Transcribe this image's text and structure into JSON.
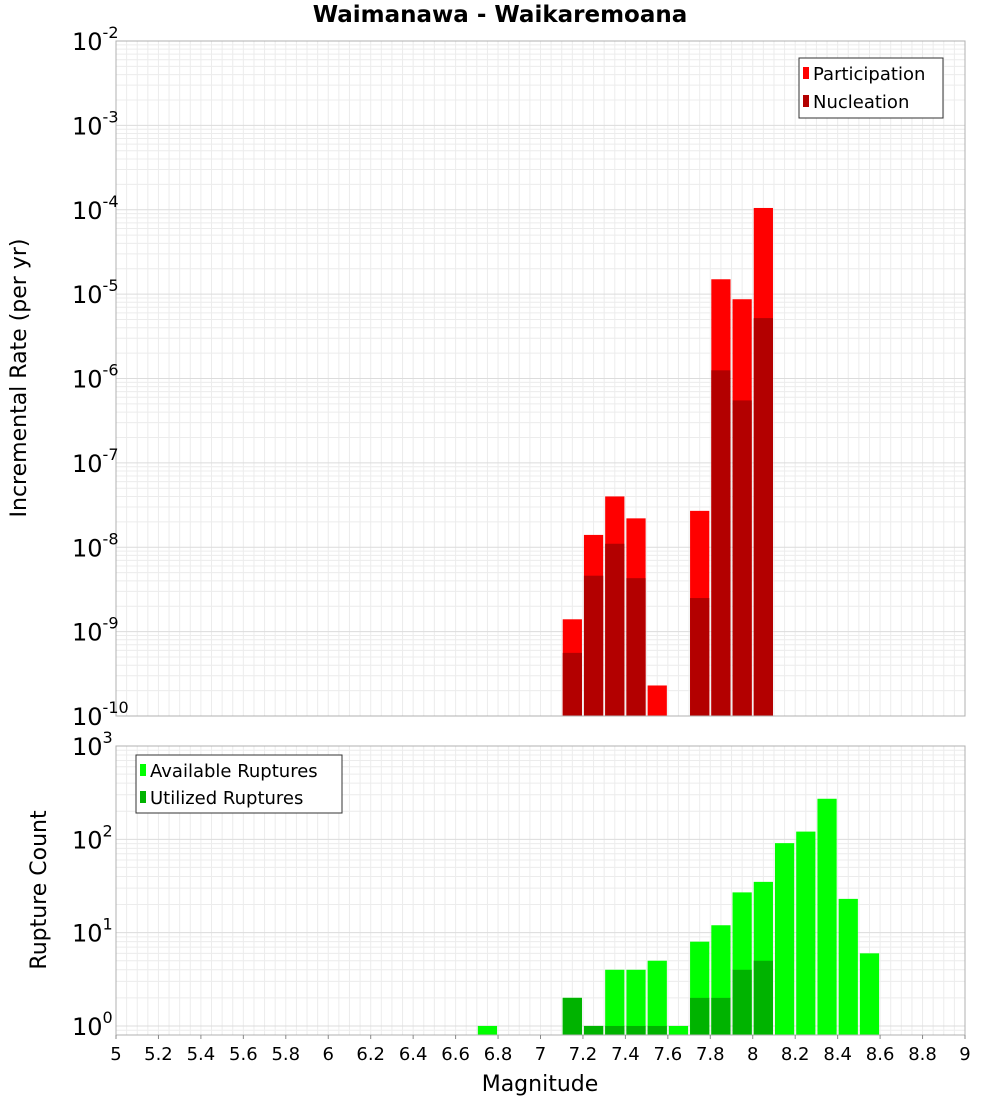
{
  "chart_data": [
    {
      "type": "bar",
      "title": "Waimanawa - Waikaremoana",
      "xlabel": "",
      "ylabel": "Incremental Rate (per yr)",
      "xlim": [
        5,
        9
      ],
      "ylim": [
        1e-10,
        0.01
      ],
      "y_scale": "log",
      "grid": true,
      "legend_position": "top-right",
      "bin_width": 0.1,
      "series": [
        {
          "name": "Participation",
          "color": "#ff0000",
          "points": [
            {
              "x": 7.15,
              "y": 1.4e-09
            },
            {
              "x": 7.25,
              "y": 1.4e-08
            },
            {
              "x": 7.35,
              "y": 4e-08
            },
            {
              "x": 7.45,
              "y": 2.2e-08
            },
            {
              "x": 7.55,
              "y": 2.3e-10
            },
            {
              "x": 7.75,
              "y": 2.7e-08
            },
            {
              "x": 7.85,
              "y": 1.5e-05
            },
            {
              "x": 7.95,
              "y": 8.7e-06
            },
            {
              "x": 8.05,
              "y": 0.000105
            }
          ]
        },
        {
          "name": "Nucleation",
          "color": "#b30000",
          "points": [
            {
              "x": 7.15,
              "y": 5.6e-10
            },
            {
              "x": 7.25,
              "y": 4.6e-09
            },
            {
              "x": 7.35,
              "y": 1.1e-08
            },
            {
              "x": 7.45,
              "y": 4.3e-09
            },
            {
              "x": 7.75,
              "y": 2.5e-09
            },
            {
              "x": 7.85,
              "y": 1.25e-06
            },
            {
              "x": 7.95,
              "y": 5.5e-07
            },
            {
              "x": 8.05,
              "y": 5.2e-06
            }
          ]
        }
      ],
      "y_ticks": [
        {
          "mantissa": "10",
          "exponent": "-10"
        },
        {
          "mantissa": "10",
          "exponent": "-9"
        },
        {
          "mantissa": "10",
          "exponent": "-8"
        },
        {
          "mantissa": "10",
          "exponent": "-7"
        },
        {
          "mantissa": "10",
          "exponent": "-6"
        },
        {
          "mantissa": "10",
          "exponent": "-5"
        },
        {
          "mantissa": "10",
          "exponent": "-4"
        },
        {
          "mantissa": "10",
          "exponent": "-3"
        },
        {
          "mantissa": "10",
          "exponent": "-2"
        }
      ]
    },
    {
      "type": "bar",
      "title": "",
      "xlabel": "Magnitude",
      "ylabel": "Rupture Count",
      "xlim": [
        5,
        9
      ],
      "ylim": [
        0.8,
        1000
      ],
      "y_scale": "log",
      "grid": true,
      "legend_position": "top-left",
      "bin_width": 0.1,
      "series": [
        {
          "name": "Available Ruptures",
          "color": "#00ff00",
          "points": [
            {
              "x": 6.75,
              "y": 1
            },
            {
              "x": 7.15,
              "y": 2
            },
            {
              "x": 7.25,
              "y": 1
            },
            {
              "x": 7.35,
              "y": 4
            },
            {
              "x": 7.45,
              "y": 4
            },
            {
              "x": 7.55,
              "y": 5
            },
            {
              "x": 7.65,
              "y": 1
            },
            {
              "x": 7.75,
              "y": 8
            },
            {
              "x": 7.85,
              "y": 12
            },
            {
              "x": 7.95,
              "y": 27
            },
            {
              "x": 8.05,
              "y": 35
            },
            {
              "x": 8.15,
              "y": 91
            },
            {
              "x": 8.25,
              "y": 121
            },
            {
              "x": 8.35,
              "y": 272
            },
            {
              "x": 8.45,
              "y": 23
            },
            {
              "x": 8.55,
              "y": 6
            }
          ]
        },
        {
          "name": "Utilized Ruptures",
          "color": "#00b300",
          "points": [
            {
              "x": 7.15,
              "y": 2
            },
            {
              "x": 7.25,
              "y": 1
            },
            {
              "x": 7.35,
              "y": 1
            },
            {
              "x": 7.45,
              "y": 1
            },
            {
              "x": 7.55,
              "y": 1
            },
            {
              "x": 7.75,
              "y": 2
            },
            {
              "x": 7.85,
              "y": 2
            },
            {
              "x": 7.95,
              "y": 4
            },
            {
              "x": 8.05,
              "y": 5
            }
          ]
        }
      ],
      "y_ticks": [
        {
          "mantissa": "10",
          "exponent": "0"
        },
        {
          "mantissa": "10",
          "exponent": "1"
        },
        {
          "mantissa": "10",
          "exponent": "2"
        },
        {
          "mantissa": "10",
          "exponent": "3"
        }
      ],
      "x_ticks": [
        "5",
        "5.2",
        "5.4",
        "5.6",
        "5.8",
        "6",
        "6.2",
        "6.4",
        "6.6",
        "6.8",
        "7",
        "7.2",
        "7.4",
        "7.6",
        "7.8",
        "8",
        "8.2",
        "8.4",
        "8.6",
        "8.8",
        "9"
      ]
    }
  ]
}
